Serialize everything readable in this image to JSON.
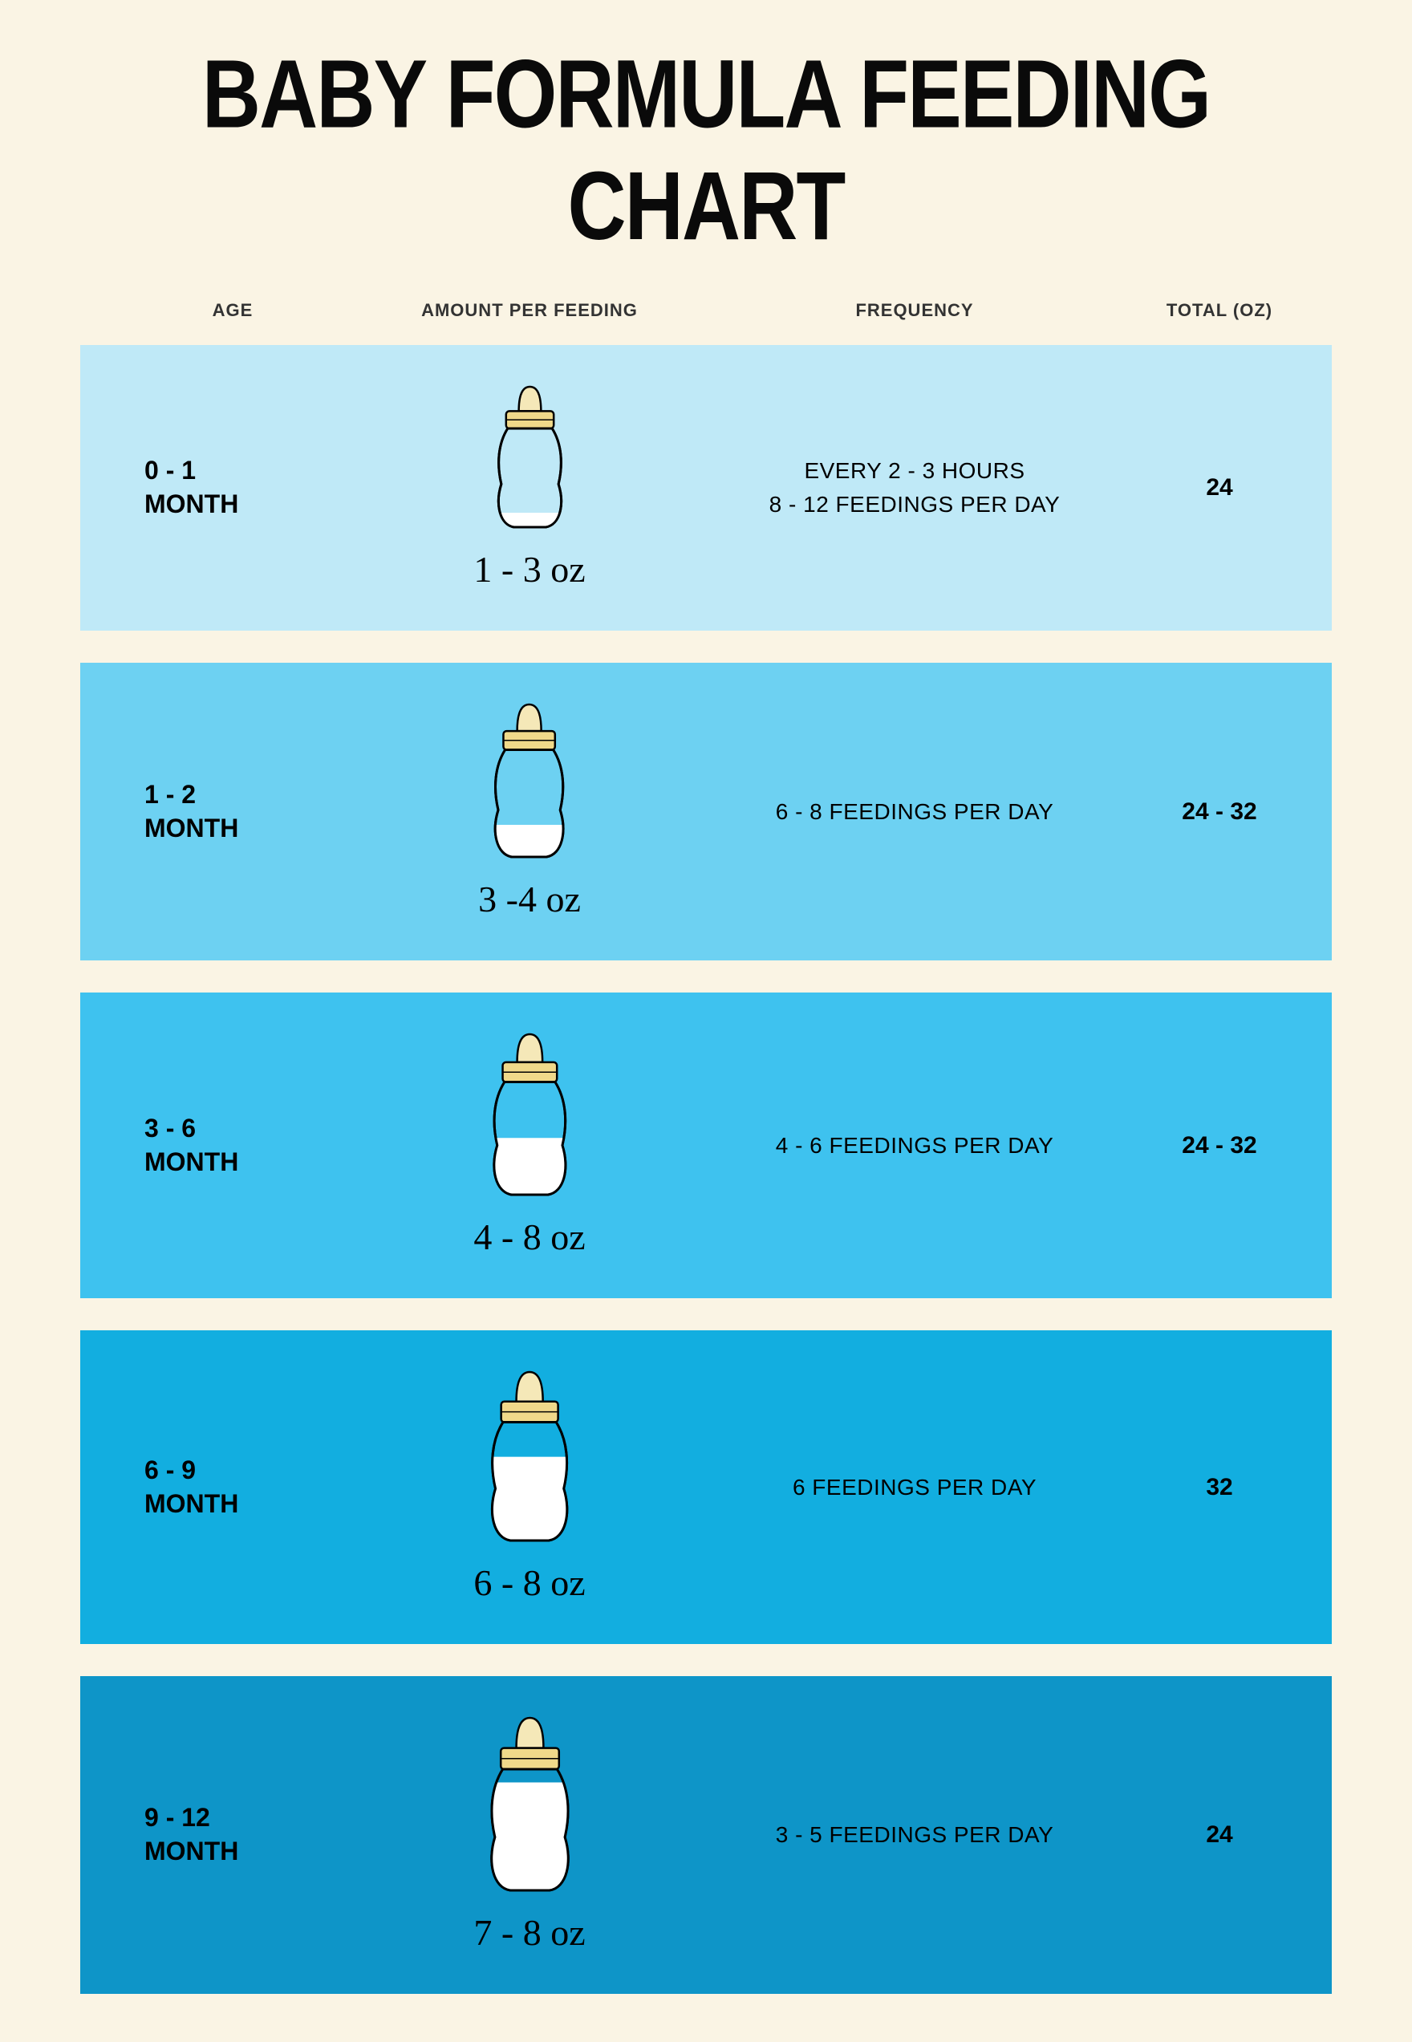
{
  "title": "BABY FORMULA FEEDING CHART",
  "background_color": "#faf4e4",
  "title_color": "#0a0a0a",
  "title_fontsize": 110,
  "headers": {
    "age": "AGE",
    "amount": "AMOUNT PER FEEDING",
    "frequency": "FREQUENCY",
    "total": "TOTAL (OZ)",
    "fontsize": 22,
    "color": "#333333"
  },
  "bottle": {
    "outline_color": "#000000",
    "body_fill": "#ffffff",
    "cap_fill": "#f0d98a",
    "nipple_fill": "#f5e8b8",
    "milk_fill": "#ffffff"
  },
  "age_fontsize": 32,
  "amount_fontsize": 46,
  "frequency_fontsize": 28,
  "total_fontsize": 30,
  "text_color": "#0a0a0a",
  "row_gap": 40,
  "rows": [
    {
      "age_line1": "0 - 1",
      "age_line2": "MONTH",
      "amount": "1 - 3 oz",
      "frequency_line1": "EVERY 2 - 3 HOURS",
      "frequency_line2": "8 - 12 FEEDINGS PER DAY",
      "total": "24",
      "bg_color": "#bfe9f7",
      "fill_level": 0.15,
      "bottle_height": 180
    },
    {
      "age_line1": "1 - 2",
      "age_line2": "MONTH",
      "amount": "3 -4 oz",
      "frequency_line1": "",
      "frequency_line2": "6 - 8 FEEDINGS PER DAY",
      "total": "24 - 32",
      "bg_color": "#6dd1f2",
      "fill_level": 0.3,
      "bottle_height": 195
    },
    {
      "age_line1": "3 - 6",
      "age_line2": "MONTH",
      "amount": "4 - 8 oz",
      "frequency_line1": "",
      "frequency_line2": "4 - 6 FEEDINGS PER DAY",
      "total": "24 - 32",
      "bg_color": "#3ec2ef",
      "fill_level": 0.5,
      "bottle_height": 205
    },
    {
      "age_line1": "6 - 9",
      "age_line2": "MONTH",
      "amount": "6 - 8 oz",
      "frequency_line1": "",
      "frequency_line2": "6 FEEDINGS PER DAY",
      "total": "32",
      "bg_color": "#12aee0",
      "fill_level": 0.7,
      "bottle_height": 215
    },
    {
      "age_line1": "9 - 12",
      "age_line2": "MONTH",
      "amount": "7 - 8 oz",
      "frequency_line1": "",
      "frequency_line2": "3 - 5 FEEDINGS PER DAY",
      "total": "24",
      "bg_color": "#0e95c8",
      "fill_level": 0.88,
      "bottle_height": 220
    }
  ]
}
